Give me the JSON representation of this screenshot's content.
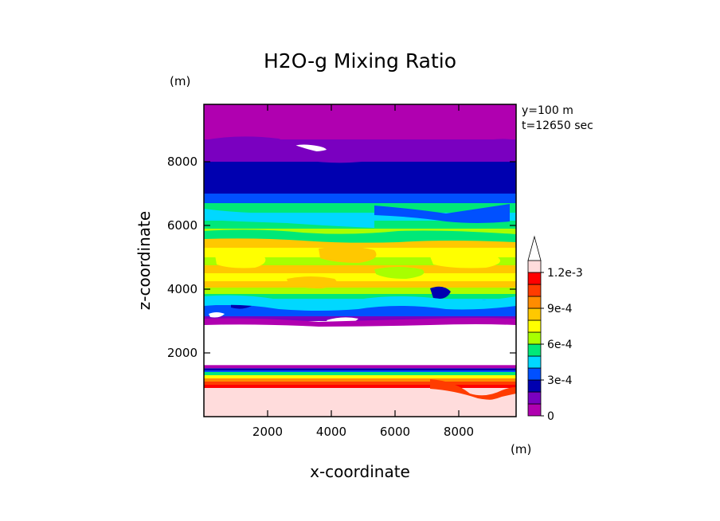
{
  "chart_data": {
    "type": "heatmap",
    "title": "H2O-g Mixing Ratio",
    "xlabel": "x-coordinate",
    "ylabel": "z-coordinate",
    "x_unit": "(m)",
    "y_unit": "(m)",
    "xlim": [
      0,
      9800
    ],
    "ylim": [
      0,
      9800
    ],
    "xticks": [
      2000,
      4000,
      6000,
      8000
    ],
    "yticks": [
      2000,
      4000,
      6000,
      8000
    ],
    "annotations": [
      "y=100 m",
      "t=12650 sec"
    ],
    "colorbar": {
      "levels": [
        0,
        0.0001,
        0.0002,
        0.0003,
        0.0004,
        0.0005,
        0.0006,
        0.0007,
        0.0008,
        0.0009,
        0.001,
        0.0011,
        0.0012
      ],
      "tick_labels": [
        "0",
        "3e-4",
        "6e-4",
        "9e-4",
        "1.2e-3"
      ],
      "tick_values": [
        0,
        0.0003,
        0.0006,
        0.0009,
        0.0012
      ],
      "colors": [
        "#b000b0",
        "#7a00c0",
        "#0000b0",
        "#0050ff",
        "#00d8ff",
        "#00e878",
        "#a8ff00",
        "#ffff00",
        "#ffc800",
        "#ff8c00",
        "#ff3c00",
        "#ff0000",
        "#ffdcdc"
      ],
      "extend": "max"
    },
    "bands": [
      {
        "z": [
          0,
          900
        ],
        "level": 12
      },
      {
        "z": [
          900,
          1000
        ],
        "level": 11
      },
      {
        "z": [
          1000,
          1100
        ],
        "level": 10
      },
      {
        "z": [
          1100,
          1200
        ],
        "level": 9
      },
      {
        "z": [
          1200,
          1300
        ],
        "level": 7
      },
      {
        "z": [
          1300,
          1400
        ],
        "level": 5
      },
      {
        "z": [
          1400,
          1450
        ],
        "level": 3
      },
      {
        "z": [
          1450,
          1520
        ],
        "level": 2
      },
      {
        "z": [
          1520,
          1620
        ],
        "level": 0
      },
      {
        "z": [
          1620,
          3000
        ],
        "level": null
      },
      {
        "z": [
          3000,
          3150
        ],
        "level": 1
      },
      {
        "z": [
          3150,
          3500
        ],
        "level": 3
      },
      {
        "z": [
          3500,
          3700
        ],
        "level": 4
      },
      {
        "z": [
          3700,
          3850
        ],
        "level": 5
      },
      {
        "z": [
          3850,
          4050
        ],
        "level": 6
      },
      {
        "z": [
          4050,
          4250
        ],
        "level": 8
      },
      {
        "z": [
          4250,
          4500
        ],
        "level": 7
      },
      {
        "z": [
          4500,
          4750
        ],
        "level": 8
      },
      {
        "z": [
          4750,
          5000
        ],
        "level": 6
      },
      {
        "z": [
          5000,
          5300
        ],
        "level": 7
      },
      {
        "z": [
          5300,
          5600
        ],
        "level": 8
      },
      {
        "z": [
          5600,
          5900
        ],
        "level": 6
      },
      {
        "z": [
          5900,
          6150
        ],
        "level": 5
      },
      {
        "z": [
          6150,
          6400
        ],
        "level": 4
      },
      {
        "z": [
          6400,
          6700
        ],
        "level": 5
      },
      {
        "z": [
          6700,
          7000
        ],
        "level": 3
      },
      {
        "z": [
          7000,
          7500
        ],
        "level": 2
      },
      {
        "z": [
          7500,
          8000
        ],
        "level": 2
      },
      {
        "z": [
          8000,
          8700
        ],
        "level": 1
      },
      {
        "z": [
          8700,
          9800
        ],
        "level": 0
      }
    ]
  }
}
